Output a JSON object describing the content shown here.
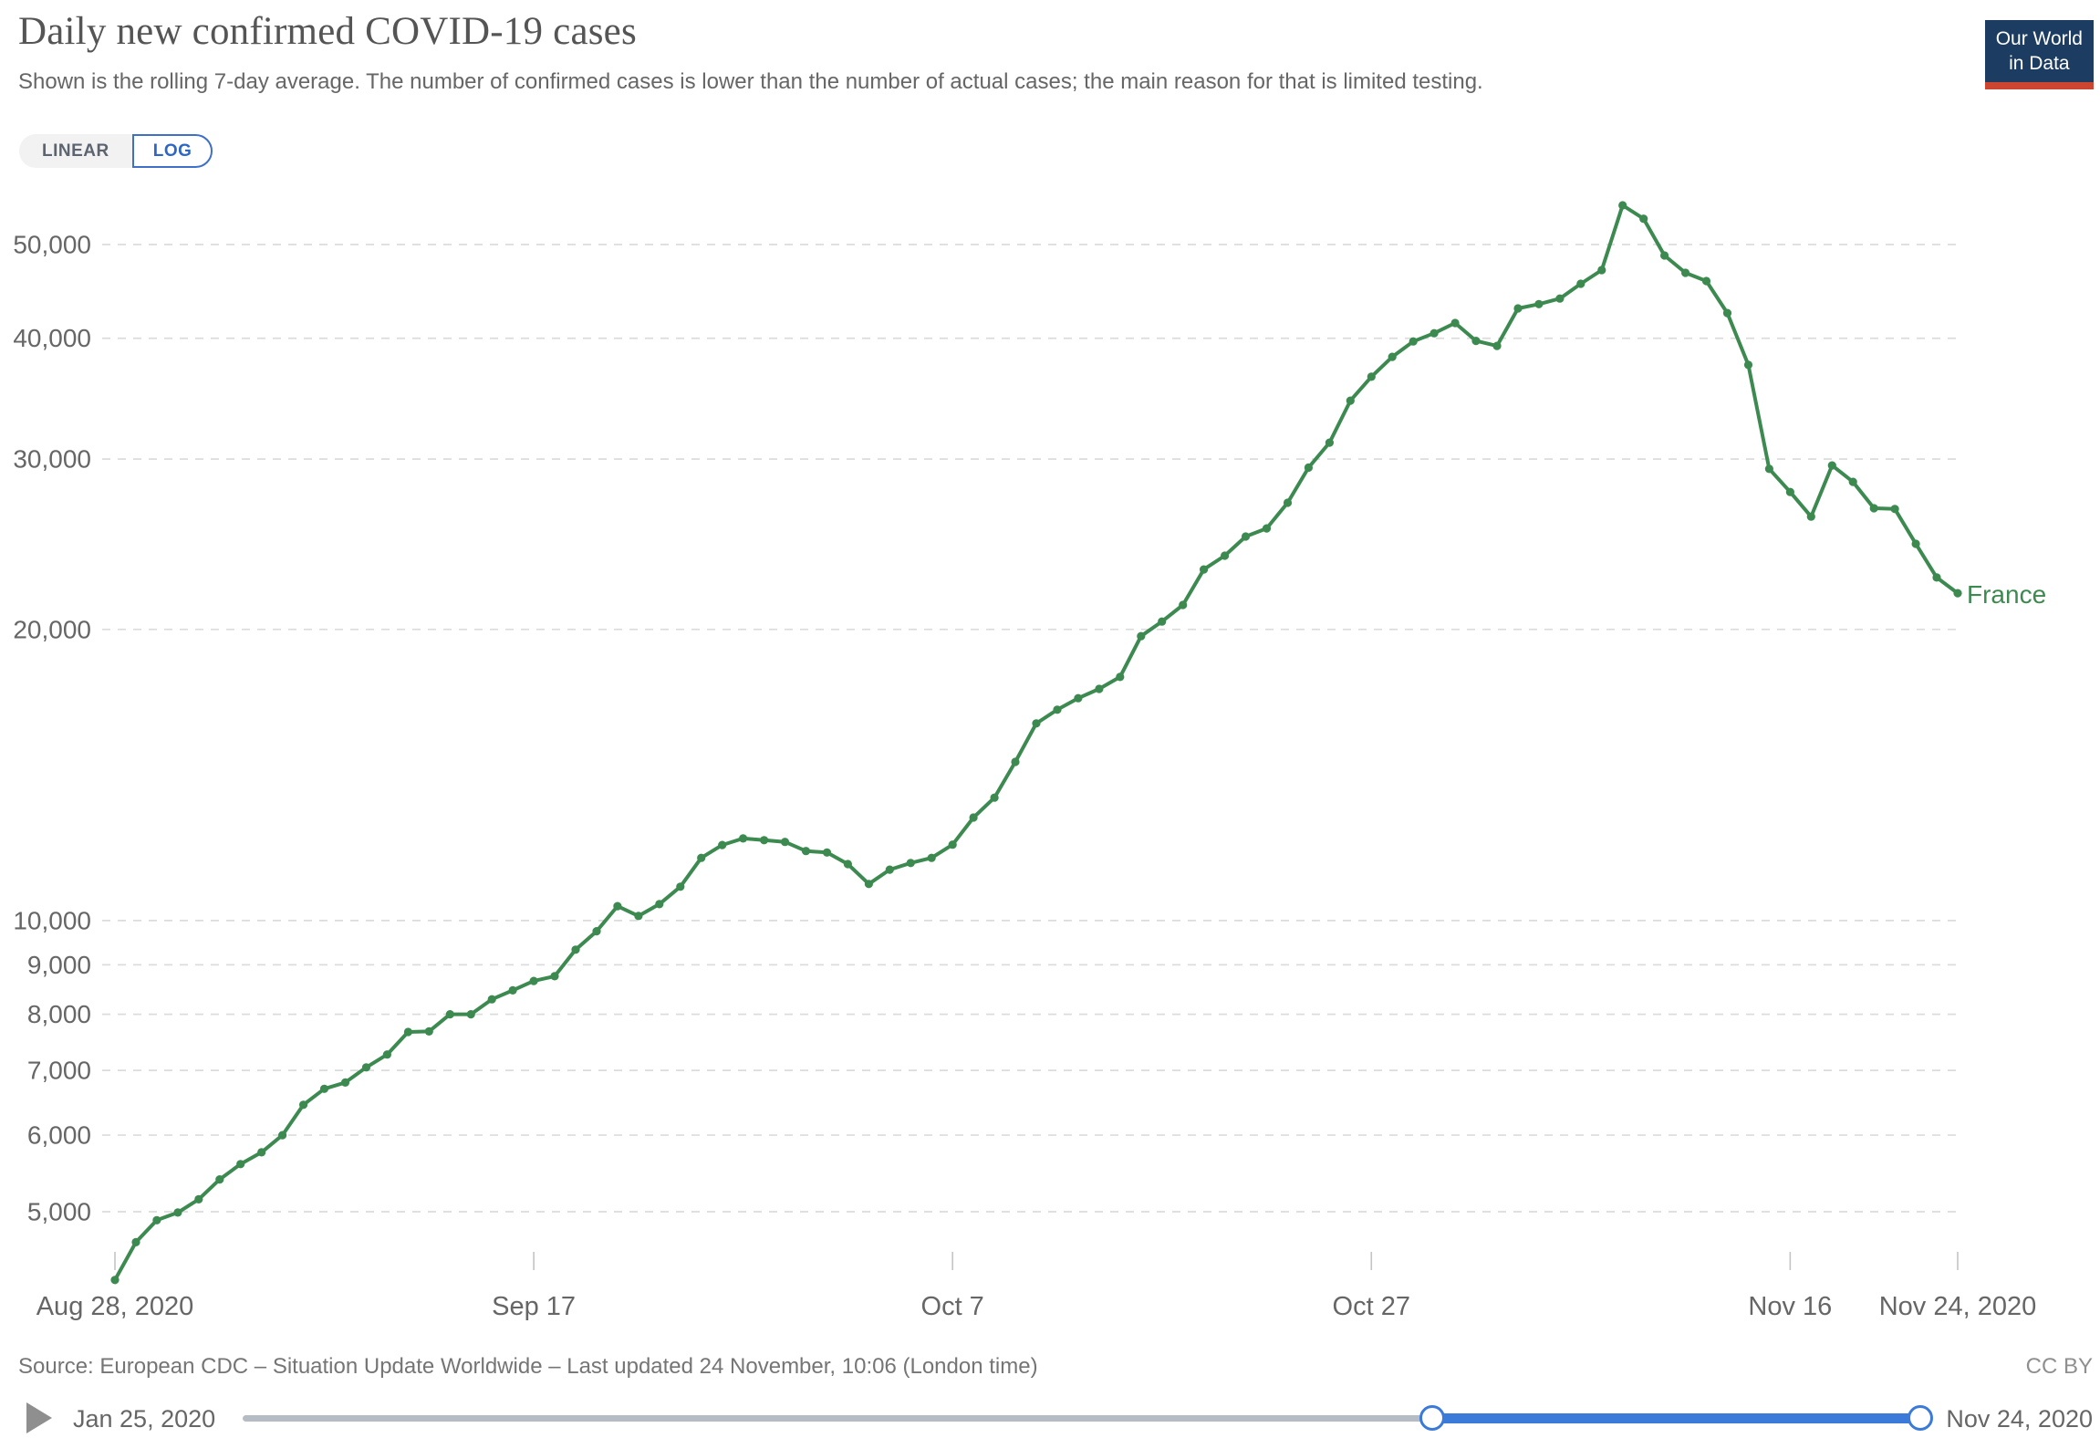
{
  "header": {
    "title": "Daily new confirmed COVID-19 cases",
    "subtitle": "Shown is the rolling 7-day average. The number of confirmed cases is lower than the number of actual cases; the main reason for that is limited testing.",
    "logo_line1": "Our World",
    "logo_line2": "in Data"
  },
  "toggle": {
    "linear_label": "LINEAR",
    "log_label": "LOG",
    "selected": "LOG"
  },
  "footer": {
    "source": "Source: European CDC – Situation Update Worldwide – Last updated 24 November, 10:06 (London time)",
    "license": "CC BY"
  },
  "timeline": {
    "start_label": "Jan 25, 2020",
    "end_label": "Nov 24, 2020"
  },
  "colors": {
    "series_green": "#3C8A50",
    "accent_blue": "#3b7ad9",
    "gridline": "#dcdcdc",
    "tick_text": "#666666"
  },
  "chart_data": {
    "type": "line",
    "title": "Daily new confirmed COVID-19 cases",
    "y_scale": "log",
    "grid": true,
    "ylim": [
      4200,
      56000
    ],
    "y_ticks": [
      5000,
      6000,
      7000,
      8000,
      9000,
      10000,
      20000,
      30000,
      40000,
      50000
    ],
    "x_ticks": [
      {
        "label": "Aug 28, 2020",
        "index": 0
      },
      {
        "label": "Sep 17",
        "index": 20
      },
      {
        "label": "Oct 7",
        "index": 40
      },
      {
        "label": "Oct 27",
        "index": 60
      },
      {
        "label": "Nov 16",
        "index": 80
      },
      {
        "label": "Nov 24, 2020",
        "index": 88
      }
    ],
    "series": [
      {
        "name": "France",
        "color": "#3C8A50",
        "dates": [
          "Aug 28",
          "Aug 29",
          "Aug 30",
          "Aug 31",
          "Sep 1",
          "Sep 2",
          "Sep 3",
          "Sep 4",
          "Sep 5",
          "Sep 6",
          "Sep 7",
          "Sep 8",
          "Sep 9",
          "Sep 10",
          "Sep 11",
          "Sep 12",
          "Sep 13",
          "Sep 14",
          "Sep 15",
          "Sep 16",
          "Sep 17",
          "Sep 18",
          "Sep 19",
          "Sep 20",
          "Sep 21",
          "Sep 22",
          "Sep 23",
          "Sep 24",
          "Sep 25",
          "Sep 26",
          "Sep 27",
          "Sep 28",
          "Sep 29",
          "Sep 30",
          "Oct 1",
          "Oct 2",
          "Oct 3",
          "Oct 4",
          "Oct 5",
          "Oct 6",
          "Oct 7",
          "Oct 8",
          "Oct 9",
          "Oct 10",
          "Oct 11",
          "Oct 12",
          "Oct 13",
          "Oct 14",
          "Oct 15",
          "Oct 16",
          "Oct 17",
          "Oct 18",
          "Oct 19",
          "Oct 20",
          "Oct 21",
          "Oct 22",
          "Oct 23",
          "Oct 24",
          "Oct 25",
          "Oct 26",
          "Oct 27",
          "Oct 28",
          "Oct 29",
          "Oct 30",
          "Oct 31",
          "Nov 1",
          "Nov 2",
          "Nov 3",
          "Nov 4",
          "Nov 5",
          "Nov 6",
          "Nov 7",
          "Nov 8",
          "Nov 9",
          "Nov 10",
          "Nov 11",
          "Nov 12",
          "Nov 13",
          "Nov 14",
          "Nov 15",
          "Nov 16",
          "Nov 17",
          "Nov 18",
          "Nov 19",
          "Nov 20",
          "Nov 21",
          "Nov 22",
          "Nov 23",
          "Nov 24"
        ],
        "values": [
          4250,
          4650,
          4900,
          4990,
          5150,
          5400,
          5600,
          5760,
          6000,
          6450,
          6700,
          6800,
          7050,
          7270,
          7670,
          7680,
          8000,
          8000,
          8290,
          8470,
          8660,
          8760,
          9330,
          9750,
          10350,
          10110,
          10400,
          10840,
          11610,
          11970,
          12160,
          12110,
          12060,
          11800,
          11760,
          11440,
          10910,
          11290,
          11470,
          11610,
          11980,
          12780,
          13400,
          14590,
          15990,
          16520,
          16980,
          17360,
          17860,
          19680,
          20380,
          21200,
          23070,
          23840,
          24950,
          25440,
          27040,
          29400,
          31200,
          34480,
          36500,
          38270,
          39700,
          40480,
          41480,
          39750,
          39280,
          42950,
          43390,
          43970,
          45540,
          47050,
          54900,
          53170,
          48710,
          46740,
          45840,
          42470,
          37540,
          29310,
          27740,
          26160,
          29550,
          28420,
          26690,
          26640,
          24520,
          22630,
          21800
        ]
      }
    ]
  }
}
